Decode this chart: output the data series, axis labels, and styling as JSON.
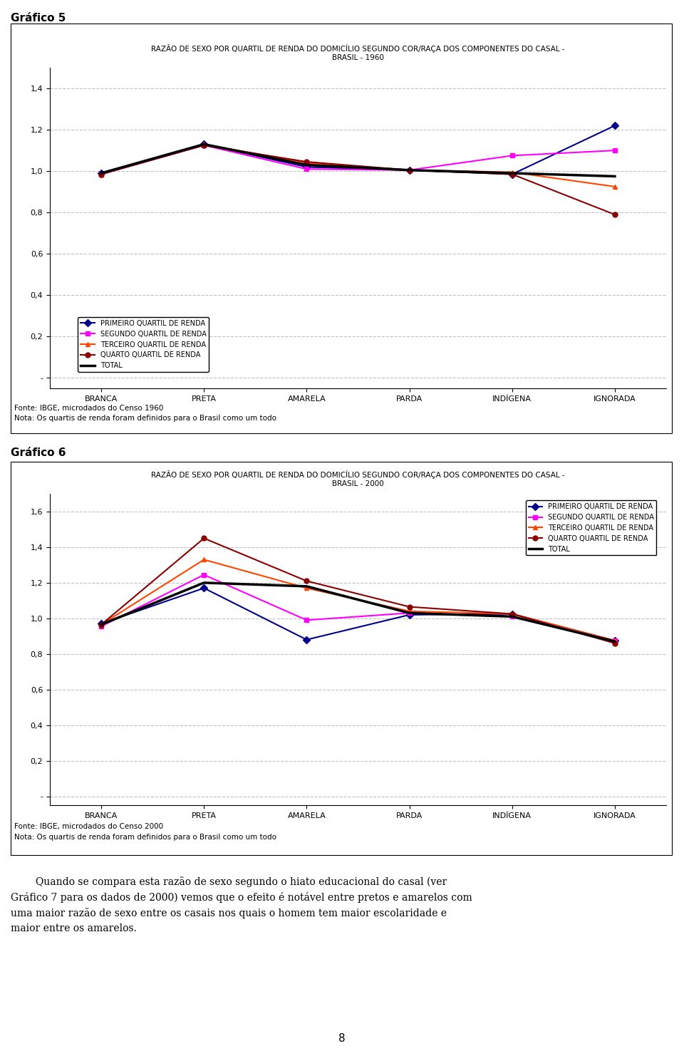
{
  "chart1": {
    "title": "RAZÃO DE SEXO POR QUARTIL DE RENDA DO DOMICÍLIO SEGUNDO COR/RAÇA DOS COMPONENTES DO CASAL -\nBRASIL - 1960",
    "categories": [
      "BRANCA",
      "PRETA",
      "AMARELA",
      "PARDA",
      "INDÍGENA",
      "IGNORADA"
    ],
    "series": {
      "PRIMEIRO QUARTIL DE RENDA": {
        "values": [
          0.99,
          1.13,
          1.02,
          1.005,
          0.985,
          1.22
        ],
        "color": "#00008B",
        "marker": "D",
        "linewidth": 1.5
      },
      "SEGUNDO QUARTIL DE RENDA": {
        "values": [
          0.985,
          1.125,
          1.01,
          1.005,
          1.075,
          1.1
        ],
        "color": "#FF00FF",
        "marker": "s",
        "linewidth": 1.5
      },
      "TERCEIRO QUARTIL DE RENDA": {
        "values": [
          0.985,
          1.13,
          1.04,
          1.005,
          0.995,
          0.925
        ],
        "color": "#FF4500",
        "marker": "^",
        "linewidth": 1.5
      },
      "QUARTO QUARTIL DE RENDA": {
        "values": [
          0.985,
          1.125,
          1.045,
          1.005,
          0.985,
          0.79
        ],
        "color": "#8B0000",
        "marker": "o",
        "linewidth": 1.5
      },
      "TOTAL": {
        "values": [
          0.99,
          1.13,
          1.03,
          1.005,
          0.99,
          0.975
        ],
        "color": "#000000",
        "marker": null,
        "linewidth": 2.5
      }
    },
    "ylim": [
      -0.05,
      1.5
    ],
    "yticks": [
      0.0,
      0.2,
      0.4,
      0.6,
      0.8,
      1.0,
      1.2,
      1.4
    ],
    "ytick_labels": [
      "-",
      "0,2",
      "0,4",
      "0,6",
      "0,8",
      "1,0",
      "1,2",
      "1,4"
    ],
    "source": "Fonte: IBGE, microdados do Censo 1960",
    "note": "Nota: Os quartis de renda foram definidos para o Brasil como um todo",
    "graf_label": "Gráfico 5"
  },
  "chart2": {
    "title": "RAZÃO DE SEXO POR QUARTIL DE RENDA DO DOMICÍLIO SEGUNDO COR/RAÇA DOS COMPONENTES DO CASAL -\nBRASIL - 2000",
    "categories": [
      "BRANCA",
      "PRETA",
      "AMARELA",
      "PARDA",
      "INDÍGENA",
      "IGNORADA"
    ],
    "series": {
      "PRIMEIRO QUARTIL DE RENDA": {
        "values": [
          0.97,
          1.17,
          0.88,
          1.02,
          1.025,
          0.875
        ],
        "color": "#00008B",
        "marker": "D",
        "linewidth": 1.5
      },
      "SEGUNDO QUARTIL DE RENDA": {
        "values": [
          0.955,
          1.245,
          0.99,
          1.03,
          1.01,
          0.875
        ],
        "color": "#FF00FF",
        "marker": "s",
        "linewidth": 1.5
      },
      "TERCEIRO QUARTIL DE RENDA": {
        "values": [
          0.965,
          1.33,
          1.17,
          1.04,
          1.025,
          0.875
        ],
        "color": "#FF4500",
        "marker": "^",
        "linewidth": 1.5
      },
      "QUARTO QUARTIL DE RENDA": {
        "values": [
          0.965,
          1.45,
          1.21,
          1.065,
          1.025,
          0.86
        ],
        "color": "#8B0000",
        "marker": "o",
        "linewidth": 1.5
      },
      "TOTAL": {
        "values": [
          0.965,
          1.2,
          1.18,
          1.03,
          1.01,
          0.87
        ],
        "color": "#000000",
        "marker": null,
        "linewidth": 2.5
      }
    },
    "ylim": [
      -0.05,
      1.7
    ],
    "yticks": [
      0.0,
      0.2,
      0.4,
      0.6,
      0.8,
      1.0,
      1.2,
      1.4,
      1.6
    ],
    "ytick_labels": [
      "-",
      "0,2",
      "0,4",
      "0,6",
      "0,8",
      "1,0",
      "1,2",
      "1,4",
      "1,6"
    ],
    "source": "Fonte: IBGE, microdados do Censo 2000",
    "note": "Nota: Os quartis de renda foram definidos para o Brasil como um todo",
    "graf_label": "Gráfico 6"
  },
  "bottom_text_line1": "        Quando se compara esta razão de sexo segundo o hiato educacional do casal (ver",
  "bottom_text_line2": "Gráfico 7 para os dados de 2000) vemos que o efeito é notável entre pretos e amarelos com",
  "bottom_text_line3": "uma maior razão de sexo entre os casais nos quais o homem tem maior escolaridade e",
  "bottom_text_line4": "maior entre os amarelos.",
  "page_number": "8",
  "background_color": "#ffffff"
}
